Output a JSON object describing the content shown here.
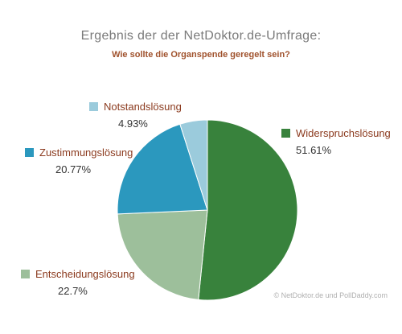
{
  "chart_data": {
    "type": "pie",
    "title": "Ergebnis der der NetDoktor.de-Umfrage:",
    "subtitle": "Wie sollte die Organspende geregelt sein?",
    "start_angle_deg": 0,
    "direction": "clockwise",
    "slices": [
      {
        "name": "Widerspruchslösung",
        "value": 51.61,
        "label": "51.61%",
        "color": "#38823c"
      },
      {
        "name": "Entscheidungslösung",
        "value": 22.7,
        "label": "22.7%",
        "color": "#9dbf9b"
      },
      {
        "name": "Zustimmungslösung",
        "value": 20.77,
        "label": "20.77%",
        "color": "#2b98be"
      },
      {
        "name": "Notstandslösung",
        "value": 4.93,
        "label": "4.93%",
        "color": "#9bcbdc"
      }
    ]
  },
  "footer": {
    "credit": "© NetDoktor.de und PollDaddy.com"
  }
}
